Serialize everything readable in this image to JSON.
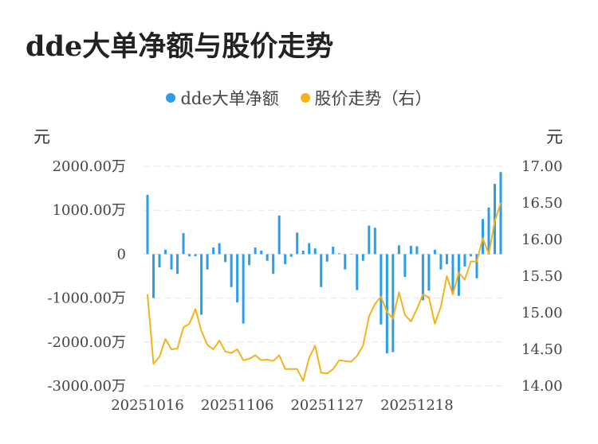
{
  "title": "dde大单净额与股价走势",
  "units": {
    "left": "元",
    "right": "元"
  },
  "legend": [
    {
      "name": "dde大单净额",
      "color": "#2b9de9"
    },
    {
      "name": "股价走势（右）",
      "color": "#f5b21b"
    }
  ],
  "chart_data": {
    "type": "bar+line",
    "x_tick_labels": [
      "20251016",
      "20251106",
      "20251127",
      "20251218"
    ],
    "x_tick_positions": [
      0,
      15,
      30,
      45
    ],
    "y_left": {
      "ticks": [
        2000,
        1000,
        0,
        -1000,
        -2000,
        -3000
      ],
      "tick_labels": [
        "2000.00万",
        "1000.00万",
        "0",
        "-1000.00万",
        "-2000.00万",
        "-3000.00万"
      ],
      "min": -3000,
      "max": 2000,
      "unit": "万元"
    },
    "y_right": {
      "ticks": [
        17.0,
        16.5,
        16.0,
        15.5,
        15.0,
        14.5,
        14.0
      ],
      "tick_labels": [
        "17.00",
        "16.50",
        "16.00",
        "15.50",
        "15.00",
        "14.50",
        "14.00"
      ],
      "min": 14.0,
      "max": 17.0
    },
    "series": [
      {
        "name": "dde大单净额",
        "type": "bar",
        "color": "#2b9de9",
        "values": [
          1350,
          -1000,
          -300,
          100,
          -350,
          -450,
          480,
          -50,
          -50,
          -1380,
          -350,
          150,
          250,
          -180,
          -750,
          -1100,
          -1580,
          -250,
          150,
          80,
          -150,
          -450,
          880,
          -230,
          -60,
          490,
          80,
          250,
          130,
          -750,
          -170,
          170,
          20,
          -350,
          0,
          -820,
          -150,
          650,
          600,
          -1600,
          -2260,
          -2230,
          200,
          -520,
          190,
          180,
          -1050,
          -830,
          100,
          -350,
          -230,
          -900,
          -950,
          -280,
          -50,
          -550,
          800,
          1060,
          1600,
          1870
        ]
      },
      {
        "name": "股价走势（右）",
        "type": "line",
        "color": "#f5b21b",
        "values": [
          15.25,
          14.3,
          14.4,
          14.64,
          14.5,
          14.51,
          14.8,
          14.85,
          15.05,
          14.75,
          14.56,
          14.5,
          14.62,
          14.47,
          14.45,
          14.5,
          14.35,
          14.37,
          14.42,
          14.35,
          14.36,
          14.34,
          14.42,
          14.23,
          14.23,
          14.23,
          14.07,
          14.38,
          14.55,
          14.18,
          14.17,
          14.23,
          14.35,
          14.34,
          14.33,
          14.41,
          14.55,
          14.95,
          15.12,
          15.22,
          15.01,
          14.92,
          15.28,
          14.97,
          14.88,
          15.05,
          15.25,
          15.21,
          14.85,
          15.08,
          15.5,
          15.25,
          15.55,
          15.45,
          15.7,
          15.7,
          16.02,
          15.8,
          16.25,
          16.5
        ]
      }
    ]
  }
}
